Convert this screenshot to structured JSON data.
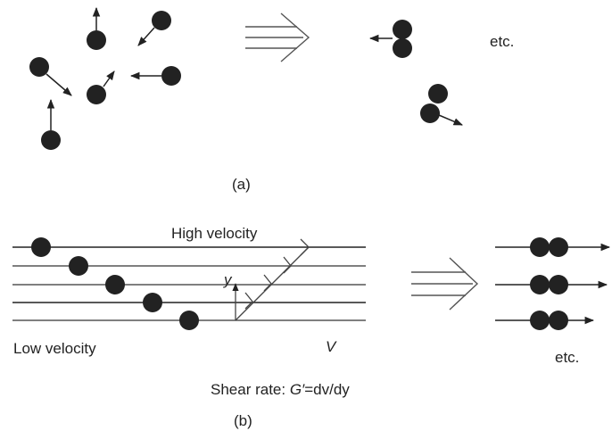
{
  "panel_a": {
    "caption": "(a)",
    "etc": "etc."
  },
  "panel_b": {
    "caption": "(b)",
    "high_velocity": "High velocity",
    "low_velocity": "Low velocity",
    "axis_y": "y",
    "axis_v": "V",
    "etc": "etc.",
    "shear_rate_prefix": "Shear rate: ",
    "shear_rate_symbol": "G′",
    "shear_rate_suffix": "=dv/dy"
  },
  "colors": {
    "ink": "#222222",
    "lines": "#555555"
  }
}
